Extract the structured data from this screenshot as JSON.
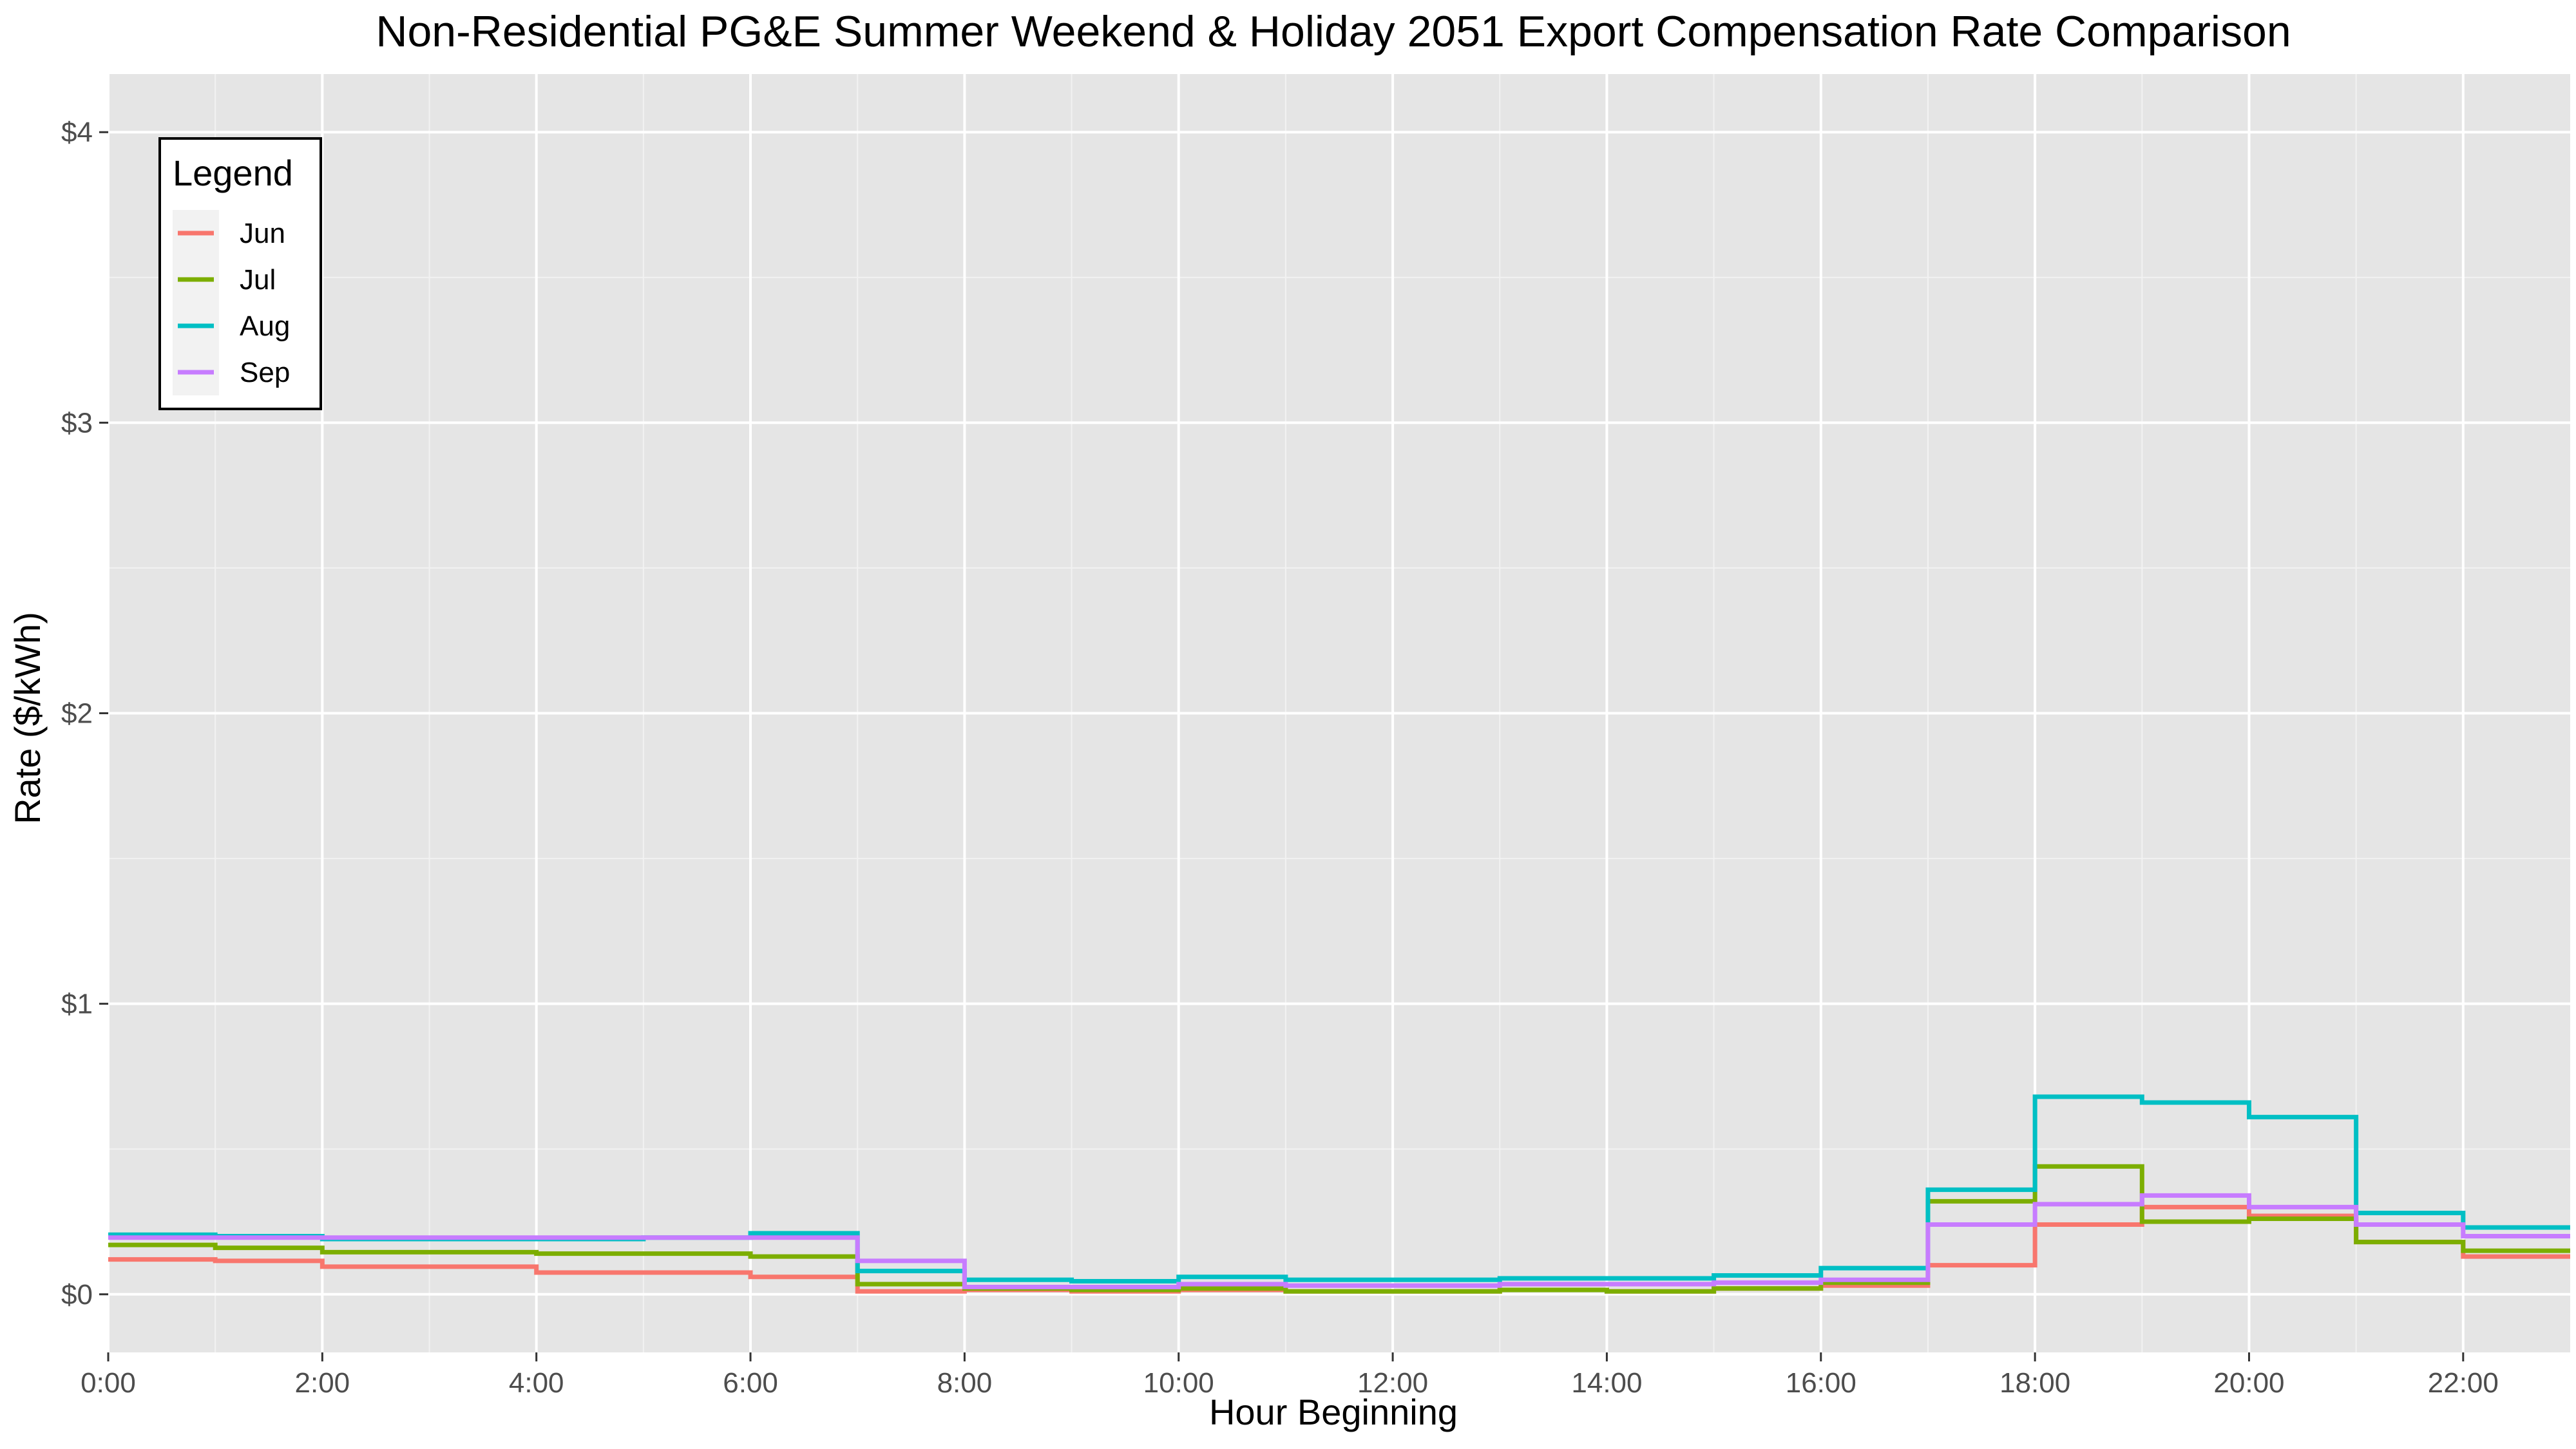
{
  "chart_data": {
    "type": "line",
    "step": true,
    "title": "Non-Residential PG&E Summer Weekend & Holiday 2051 Export Compensation Rate Comparison",
    "xlabel": "Hour Beginning",
    "ylabel": "Rate ($/kWh)",
    "xlim": [
      0,
      23
    ],
    "ylim": [
      -0.2,
      4.2
    ],
    "x_ticks": [
      0,
      2,
      4,
      6,
      8,
      10,
      12,
      14,
      16,
      18,
      20,
      22
    ],
    "x_tick_labels": [
      "0:00",
      "2:00",
      "4:00",
      "6:00",
      "8:00",
      "10:00",
      "12:00",
      "14:00",
      "16:00",
      "18:00",
      "20:00",
      "22:00"
    ],
    "y_ticks": [
      0,
      1,
      2,
      3,
      4
    ],
    "y_tick_labels": [
      "$0",
      "$1",
      "$2",
      "$3",
      "$4"
    ],
    "grid": true,
    "background": "#e5e5e5",
    "legend": {
      "title": "Legend",
      "placement": "top-left"
    },
    "x": [
      0,
      1,
      2,
      3,
      4,
      5,
      6,
      7,
      8,
      9,
      10,
      11,
      12,
      13,
      14,
      15,
      16,
      17,
      18,
      19,
      20,
      21,
      22,
      23
    ],
    "series": [
      {
        "name": "Jun",
        "color": "#f8766d",
        "values": [
          0.12,
          0.115,
          0.095,
          0.095,
          0.075,
          0.075,
          0.06,
          0.01,
          0.015,
          0.01,
          0.015,
          0.01,
          0.01,
          0.015,
          0.01,
          0.02,
          0.03,
          0.1,
          0.24,
          0.3,
          0.27,
          0.18,
          0.13,
          0.13
        ]
      },
      {
        "name": "Jul",
        "color": "#7cae00",
        "values": [
          0.17,
          0.16,
          0.145,
          0.145,
          0.14,
          0.14,
          0.13,
          0.035,
          0.02,
          0.015,
          0.02,
          0.01,
          0.01,
          0.015,
          0.01,
          0.02,
          0.04,
          0.32,
          0.44,
          0.25,
          0.26,
          0.18,
          0.15,
          0.15
        ]
      },
      {
        "name": "Aug",
        "color": "#00bfc4",
        "values": [
          0.205,
          0.2,
          0.19,
          0.19,
          0.19,
          0.195,
          0.21,
          0.08,
          0.05,
          0.045,
          0.06,
          0.05,
          0.05,
          0.055,
          0.055,
          0.065,
          0.09,
          0.36,
          0.68,
          0.66,
          0.61,
          0.28,
          0.23,
          0.23
        ]
      },
      {
        "name": "Sep",
        "color": "#c77cff",
        "values": [
          0.195,
          0.195,
          0.195,
          0.195,
          0.195,
          0.195,
          0.195,
          0.115,
          0.025,
          0.025,
          0.035,
          0.03,
          0.03,
          0.035,
          0.035,
          0.04,
          0.05,
          0.24,
          0.31,
          0.34,
          0.3,
          0.24,
          0.2,
          0.2
        ]
      }
    ]
  }
}
